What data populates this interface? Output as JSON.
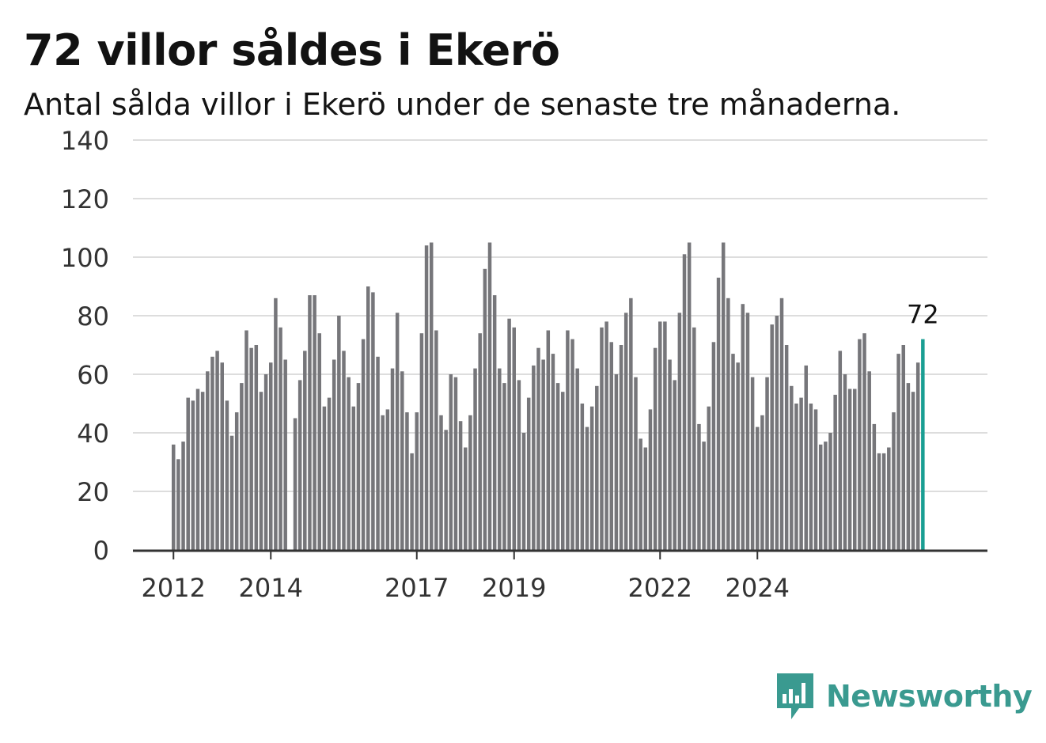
{
  "title": "72 villor såldes i Ekerö",
  "subtitle": "Antal sålda villor i Ekerö under de senaste tre månaderna.",
  "brand": {
    "name": "Newsworthy",
    "color": "#3a9a90",
    "icon": "bar-chart-speech-bubble-icon"
  },
  "chart_data": {
    "type": "bar",
    "title": "72 villor såldes i Ekerö",
    "subtitle": "Antal sålda villor i Ekerö under de senaste tre månaderna.",
    "xlabel": "",
    "ylabel": "",
    "ylim": [
      0,
      140
    ],
    "yticks": [
      0,
      20,
      40,
      60,
      80,
      100,
      120,
      140
    ],
    "grid": true,
    "x_axis_ticks": [
      {
        "label": "2012",
        "index": 0
      },
      {
        "label": "2014",
        "index": 20
      },
      {
        "label": "2017",
        "index": 50
      },
      {
        "label": "2019",
        "index": 70
      },
      {
        "label": "2022",
        "index": 100
      },
      {
        "label": "2024",
        "index": 120
      }
    ],
    "bar_color": "#76767a",
    "highlight_color": "#1a9e93",
    "highlight_label": "72",
    "values": [
      36,
      31,
      37,
      52,
      51,
      55,
      54,
      61,
      66,
      68,
      64,
      51,
      39,
      47,
      57,
      75,
      69,
      70,
      54,
      60,
      64,
      86,
      76,
      65,
      0,
      45,
      58,
      68,
      87,
      87,
      74,
      49,
      52,
      65,
      80,
      68,
      59,
      49,
      57,
      72,
      90,
      88,
      66,
      46,
      48,
      62,
      81,
      61,
      47,
      33,
      47,
      74,
      104,
      105,
      75,
      46,
      41,
      60,
      59,
      44,
      35,
      46,
      62,
      74,
      96,
      105,
      87,
      62,
      57,
      79,
      76,
      58,
      40,
      52,
      63,
      69,
      65,
      75,
      67,
      57,
      54,
      75,
      72,
      62,
      50,
      42,
      49,
      56,
      76,
      78,
      71,
      60,
      70,
      81,
      86,
      59,
      38,
      35,
      48,
      69,
      78,
      78,
      65,
      58,
      81,
      101,
      105,
      76,
      43,
      37,
      49,
      71,
      93,
      105,
      86,
      67,
      64,
      84,
      81,
      59,
      42,
      46,
      59,
      77,
      80,
      86,
      70,
      56,
      50,
      52,
      63,
      50,
      48,
      36,
      37,
      40,
      53,
      68,
      60,
      55,
      55,
      72,
      74,
      61,
      43,
      33,
      33,
      35,
      47,
      67,
      70,
      57,
      54,
      64,
      72
    ]
  }
}
